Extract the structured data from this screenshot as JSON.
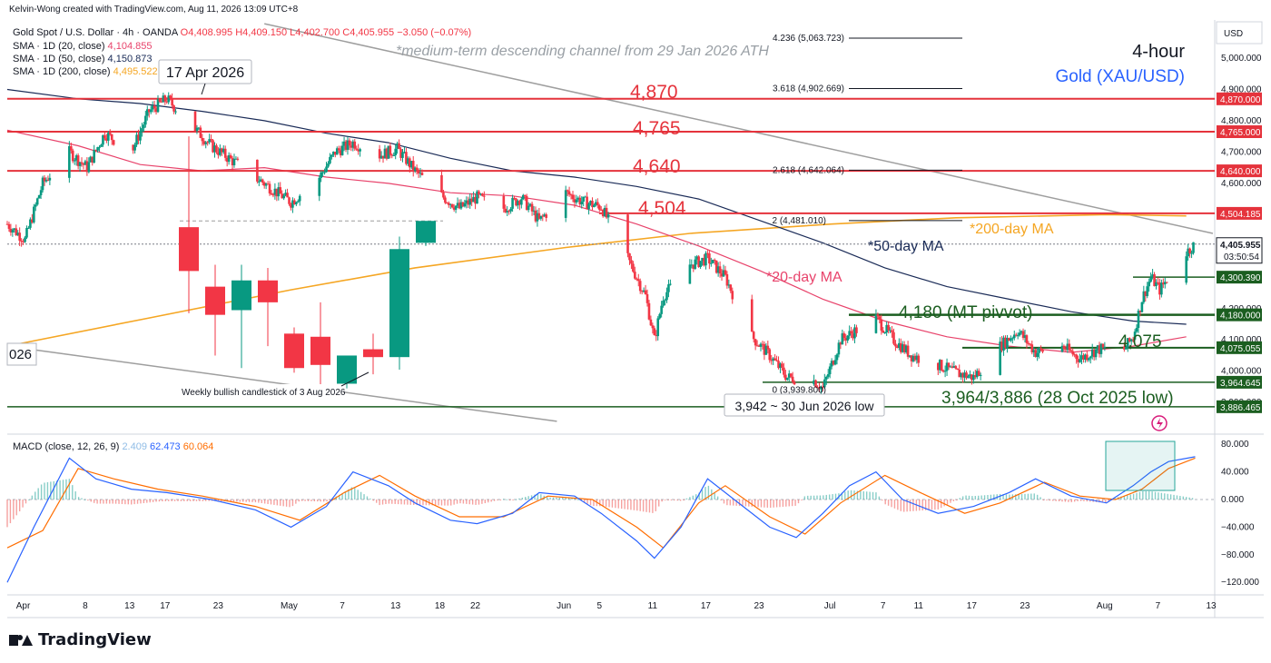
{
  "header": {
    "creator_line": "Kelvin-Wong created with TradingView.com, Aug 11, 2026 13:09 UTC+8",
    "symbol_line": "Gold Spot / U.S. Dollar · 4h · OANDA",
    "ohlc": {
      "o": "O4,408.995",
      "h": "H4,409.150",
      "l": "L4,402.700",
      "c": "C4,405.955",
      "chg": "−3.050 (−0.07%)"
    },
    "sma20_label": "SMA · 1D (20, close)",
    "sma20_val": "4,104.855",
    "sma50_label": "SMA · 1D (50, close)",
    "sma50_val": "4,150.873",
    "sma200_label": "SMA · 1D (200, close)",
    "sma200_val": "4,495.522",
    "macd_label": "MACD (close, 12, 26, 9)",
    "macd_hist": "2.409",
    "macd_line": "62.473",
    "macd_signal": "60.064"
  },
  "annotations": {
    "channel_note": "*medium-term descending channel from 29 Jan 2026 ATH",
    "timeframe": "4-hour",
    "instrument": "Gold (XAU/USD)",
    "apr17": "17 Apr 2026",
    "weekly_candle": "Weekly bullish candlestick of 3 Aug 2026",
    "low_jun30": "3,942 ~ 30 Jun 2026 low",
    "support_text": "3,964/3,886 (28 Oct 2025 low)",
    "pivot_text": "4,180 (MT pivvot)",
    "r4870": "4,870",
    "r4765": "4,765",
    "r4640": "4,640",
    "r4504": "4,504",
    "s4075": "4,075",
    "ma200": "*200-day MA",
    "ma50": "*50-day MA",
    "ma20": "*20-day MA",
    "left_cut": "026"
  },
  "fib": [
    {
      "label": "4.236 (5,063.723)",
      "price": 5063.723
    },
    {
      "label": "3.618 (4,902.669)",
      "price": 4902.669
    },
    {
      "label": "2.618 (4,642.064)",
      "price": 4642.064
    },
    {
      "label": "2 (4,481.010)",
      "price": 4481.01
    },
    {
      "label": "0 (3,939.800)",
      "price": 3939.8
    }
  ],
  "price_axis": {
    "currency": "USD",
    "ticks": [
      "5,000.000",
      "4,900.000",
      "4,800.000",
      "4,700.000",
      "4,600.000",
      "4,200.000",
      "4,100.000",
      "4,000.000",
      "3,900.000"
    ],
    "tick_values": [
      5000,
      4900,
      4800,
      4700,
      4600,
      4200,
      4100,
      4000,
      3900
    ],
    "current": "4,405.955",
    "countdown": "03:50:54",
    "labels": [
      {
        "text": "4,870.000",
        "price": 4870,
        "color": "#e5333c"
      },
      {
        "text": "4,765.000",
        "price": 4765,
        "color": "#e5333c"
      },
      {
        "text": "4,640.000",
        "price": 4640,
        "color": "#e5333c"
      },
      {
        "text": "4,504.185",
        "price": 4504.185,
        "color": "#e5333c"
      },
      {
        "text": "4,300.390",
        "price": 4300.39,
        "color": "#1b5e20"
      },
      {
        "text": "4,180.000",
        "price": 4180,
        "color": "#1b5e20"
      },
      {
        "text": "4,075.055",
        "price": 4075.055,
        "color": "#1b5e20"
      },
      {
        "text": "3,964.645",
        "price": 3964.645,
        "color": "#1b5e20"
      },
      {
        "text": "3,886.465",
        "price": 3886.465,
        "color": "#1b5e20"
      }
    ]
  },
  "macd_axis": {
    "ticks": [
      "80.000",
      "40.000",
      "0.000",
      "−40.000",
      "−80.000",
      "−120.000"
    ],
    "values": [
      80,
      40,
      0,
      -40,
      -80,
      -120
    ]
  },
  "time_axis": [
    "Apr",
    "8",
    "13",
    "17",
    "23",
    "May",
    "7",
    "13",
    "18",
    "22",
    "Jun",
    "5",
    "11",
    "17",
    "23",
    "Jul",
    "7",
    "11",
    "17",
    "23",
    "Aug",
    "7",
    "13"
  ],
  "brand": "TradingView",
  "colors": {
    "up": "#089981",
    "down": "#f23645",
    "red_level": "#e5333c",
    "green_level": "#1b5e20",
    "ma200": "#f5a623",
    "ma50": "#1a2b57",
    "ma20": "#e8436b",
    "macd": "#2962ff",
    "signal": "#ff6d00"
  },
  "chart_data": {
    "type": "candlestick",
    "x_range": [
      "Mar 30 2026",
      "Aug 13 2026"
    ],
    "ylim": [
      3840,
      5110
    ],
    "close_path": [
      [
        "Mar 30",
        4470
      ],
      [
        "Apr 1",
        4420
      ],
      [
        "Apr 3",
        4600
      ],
      [
        "Apr 6",
        4700
      ],
      [
        "Apr 8",
        4650
      ],
      [
        "Apr 10",
        4760
      ],
      [
        "Apr 13",
        4700
      ],
      [
        "Apr 15",
        4830
      ],
      [
        "Apr 17",
        4870
      ],
      [
        "Apr 20",
        4780
      ],
      [
        "Apr 22",
        4720
      ],
      [
        "Apr 24",
        4680
      ],
      [
        "Apr 27",
        4620
      ],
      [
        "Apr 29",
        4580
      ],
      [
        "May 1",
        4540
      ],
      [
        "May 4",
        4610
      ],
      [
        "May 6",
        4700
      ],
      [
        "May 8",
        4730
      ],
      [
        "May 11",
        4690
      ],
      [
        "May 13",
        4710
      ],
      [
        "May 15",
        4640
      ],
      [
        "May 18",
        4560
      ],
      [
        "May 20",
        4520
      ],
      [
        "May 22",
        4555
      ],
      [
        "May 25",
        4520
      ],
      [
        "May 27",
        4555
      ],
      [
        "May 29",
        4480
      ],
      [
        "Jun 1",
        4570
      ],
      [
        "Jun 3",
        4540
      ],
      [
        "Jun 5",
        4525
      ],
      [
        "Jun 8",
        4360
      ],
      [
        "Jun 10",
        4240
      ],
      [
        "Jun 11",
        4100
      ],
      [
        "Jun 12",
        4240
      ],
      [
        "Jun 15",
        4340
      ],
      [
        "Jun 17",
        4360
      ],
      [
        "Jun 19",
        4300
      ],
      [
        "Jun 22",
        4110
      ],
      [
        "Jun 24",
        4050
      ],
      [
        "Jun 26",
        3980
      ],
      [
        "Jun 29",
        3970
      ],
      [
        "Jun 30",
        3945
      ],
      [
        "Jul 2",
        4100
      ],
      [
        "Jul 6",
        4170
      ],
      [
        "Jul 8",
        4100
      ],
      [
        "Jul 10",
        4050
      ],
      [
        "Jul 13",
        4020
      ],
      [
        "Jul 15",
        3995
      ],
      [
        "Jul 17",
        3980
      ],
      [
        "Jul 20",
        4080
      ],
      [
        "Jul 22",
        4130
      ],
      [
        "Jul 24",
        4060
      ],
      [
        "Jul 27",
        4080
      ],
      [
        "Jul 29",
        4040
      ],
      [
        "Jul 31",
        4070
      ],
      [
        "Aug 3",
        4070
      ],
      [
        "Aug 4",
        4110
      ],
      [
        "Aug 5",
        4230
      ],
      [
        "Aug 6",
        4300
      ],
      [
        "Aug 7",
        4260
      ],
      [
        "Aug 10",
        4380
      ],
      [
        "Aug 11",
        4406
      ]
    ],
    "weekly_candles": [
      {
        "o": 4460,
        "h": 4750,
        "l": 4185,
        "c": 4320
      },
      {
        "o": 4270,
        "h": 4340,
        "l": 4050,
        "c": 4180
      },
      {
        "o": 4195,
        "h": 4340,
        "l": 4010,
        "c": 4290
      },
      {
        "o": 4290,
        "h": 4330,
        "l": 4080,
        "c": 4220
      },
      {
        "o": 4120,
        "h": 4140,
        "l": 3995,
        "c": 4010
      },
      {
        "o": 4110,
        "h": 4220,
        "l": 3930,
        "c": 4020
      },
      {
        "o": 3960,
        "h": 4040,
        "l": 3945,
        "c": 4050
      },
      {
        "o": 4070,
        "h": 4120,
        "l": 3990,
        "c": 4045
      },
      {
        "o": 4045,
        "h": 4430,
        "l": 4005,
        "c": 4390
      },
      {
        "o": 4410,
        "h": 4480,
        "l": 4400,
        "c": 4480
      }
    ],
    "sma20_path": [
      [
        "Mar 30",
        4770
      ],
      [
        "Apr 7",
        4720
      ],
      [
        "Apr 14",
        4660
      ],
      [
        "Apr 21",
        4640
      ],
      [
        "Apr 28",
        4650
      ],
      [
        "May 5",
        4620
      ],
      [
        "May 12",
        4600
      ],
      [
        "May 19",
        4570
      ],
      [
        "May 26",
        4560
      ],
      [
        "Jun 2",
        4530
      ],
      [
        "Jun 9",
        4470
      ],
      [
        "Jun 16",
        4400
      ],
      [
        "Jun 23",
        4320
      ],
      [
        "Jun 30",
        4230
      ],
      [
        "Jul 7",
        4160
      ],
      [
        "Jul 14",
        4110
      ],
      [
        "Jul 21",
        4080
      ],
      [
        "Jul 28",
        4060
      ],
      [
        "Aug 4",
        4080
      ],
      [
        "Aug 10",
        4110
      ]
    ],
    "sma50_path": [
      [
        "Mar 30",
        4900
      ],
      [
        "Apr 7",
        4870
      ],
      [
        "Apr 14",
        4855
      ],
      [
        "Apr 21",
        4830
      ],
      [
        "Apr 28",
        4800
      ],
      [
        "May 5",
        4760
      ],
      [
        "May 12",
        4730
      ],
      [
        "May 19",
        4680
      ],
      [
        "May 26",
        4640
      ],
      [
        "Jun 2",
        4620
      ],
      [
        "Jun 9",
        4590
      ],
      [
        "Jun 16",
        4550
      ],
      [
        "Jun 23",
        4480
      ],
      [
        "Jun 30",
        4410
      ],
      [
        "Jul 7",
        4330
      ],
      [
        "Jul 14",
        4270
      ],
      [
        "Jul 21",
        4230
      ],
      [
        "Jul 28",
        4190
      ],
      [
        "Aug 4",
        4160
      ],
      [
        "Aug 10",
        4150
      ]
    ],
    "sma200_path": [
      [
        "Mar 30",
        4080
      ],
      [
        "Apr 15",
        4170
      ],
      [
        "May 1",
        4260
      ],
      [
        "May 15",
        4330
      ],
      [
        "Jun 1",
        4395
      ],
      [
        "Jun 15",
        4440
      ],
      [
        "Jul 1",
        4470
      ],
      [
        "Jul 15",
        4490
      ],
      [
        "Aug 1",
        4500
      ],
      [
        "Aug 10",
        4496
      ]
    ],
    "channel_upper": [
      [
        "Apr 28",
        5110
      ],
      [
        "Aug 13",
        4440
      ]
    ],
    "channel_lower": [
      [
        "Mar 30",
        4080
      ],
      [
        "May 31",
        3840
      ]
    ],
    "macd_path": [
      [
        "Mar 30",
        -120
      ],
      [
        "Apr 2",
        -40
      ],
      [
        "Apr 6",
        60
      ],
      [
        "Apr 9",
        30
      ],
      [
        "Apr 13",
        15
      ],
      [
        "Apr 17",
        10
      ],
      [
        "Apr 22",
        0
      ],
      [
        "Apr 27",
        -15
      ],
      [
        "May 1",
        -40
      ],
      [
        "May 5",
        -10
      ],
      [
        "May 8",
        40
      ],
      [
        "May 12",
        20
      ],
      [
        "May 15",
        -5
      ],
      [
        "May 19",
        -30
      ],
      [
        "May 22",
        -35
      ],
      [
        "May 26",
        -20
      ],
      [
        "May 29",
        10
      ],
      [
        "Jun 2",
        5
      ],
      [
        "Jun 5",
        -20
      ],
      [
        "Jun 9",
        -60
      ],
      [
        "Jun 11",
        -85
      ],
      [
        "Jun 14",
        -40
      ],
      [
        "Jun 17",
        30
      ],
      [
        "Jun 20",
        0
      ],
      [
        "Jun 24",
        -40
      ],
      [
        "Jun 27",
        -55
      ],
      [
        "Jun 30",
        -20
      ],
      [
        "Jul 3",
        20
      ],
      [
        "Jul 6",
        40
      ],
      [
        "Jul 9",
        0
      ],
      [
        "Jul 13",
        -20
      ],
      [
        "Jul 17",
        -10
      ],
      [
        "Jul 21",
        10
      ],
      [
        "Jul 24",
        30
      ],
      [
        "Jul 28",
        5
      ],
      [
        "Aug 1",
        -5
      ],
      [
        "Aug 4",
        20
      ],
      [
        "Aug 6",
        40
      ],
      [
        "Aug 8",
        55
      ],
      [
        "Aug 11",
        62
      ]
    ],
    "signal_path": [
      [
        "Mar 30",
        -70
      ],
      [
        "Apr 3",
        -45
      ],
      [
        "Apr 7",
        45
      ],
      [
        "Apr 11",
        30
      ],
      [
        "Apr 16",
        15
      ],
      [
        "Apr 21",
        5
      ],
      [
        "Apr 27",
        -10
      ],
      [
        "May 2",
        -30
      ],
      [
        "May 7",
        10
      ],
      [
        "May 11",
        35
      ],
      [
        "May 15",
        5
      ],
      [
        "May 20",
        -25
      ],
      [
        "May 25",
        -25
      ],
      [
        "May 30",
        5
      ],
      [
        "Jun 4",
        0
      ],
      [
        "Jun 9",
        -40
      ],
      [
        "Jun 12",
        -70
      ],
      [
        "Jun 16",
        -5
      ],
      [
        "Jun 19",
        20
      ],
      [
        "Jun 24",
        -25
      ],
      [
        "Jun 28",
        -50
      ],
      [
        "Jul 2",
        -5
      ],
      [
        "Jul 7",
        35
      ],
      [
        "Jul 11",
        10
      ],
      [
        "Jul 16",
        -20
      ],
      [
        "Jul 20",
        -5
      ],
      [
        "Jul 25",
        25
      ],
      [
        "Jul 29",
        5
      ],
      [
        "Aug 2",
        0
      ],
      [
        "Aug 5",
        15
      ],
      [
        "Aug 8",
        45
      ],
      [
        "Aug 11",
        60
      ]
    ]
  }
}
